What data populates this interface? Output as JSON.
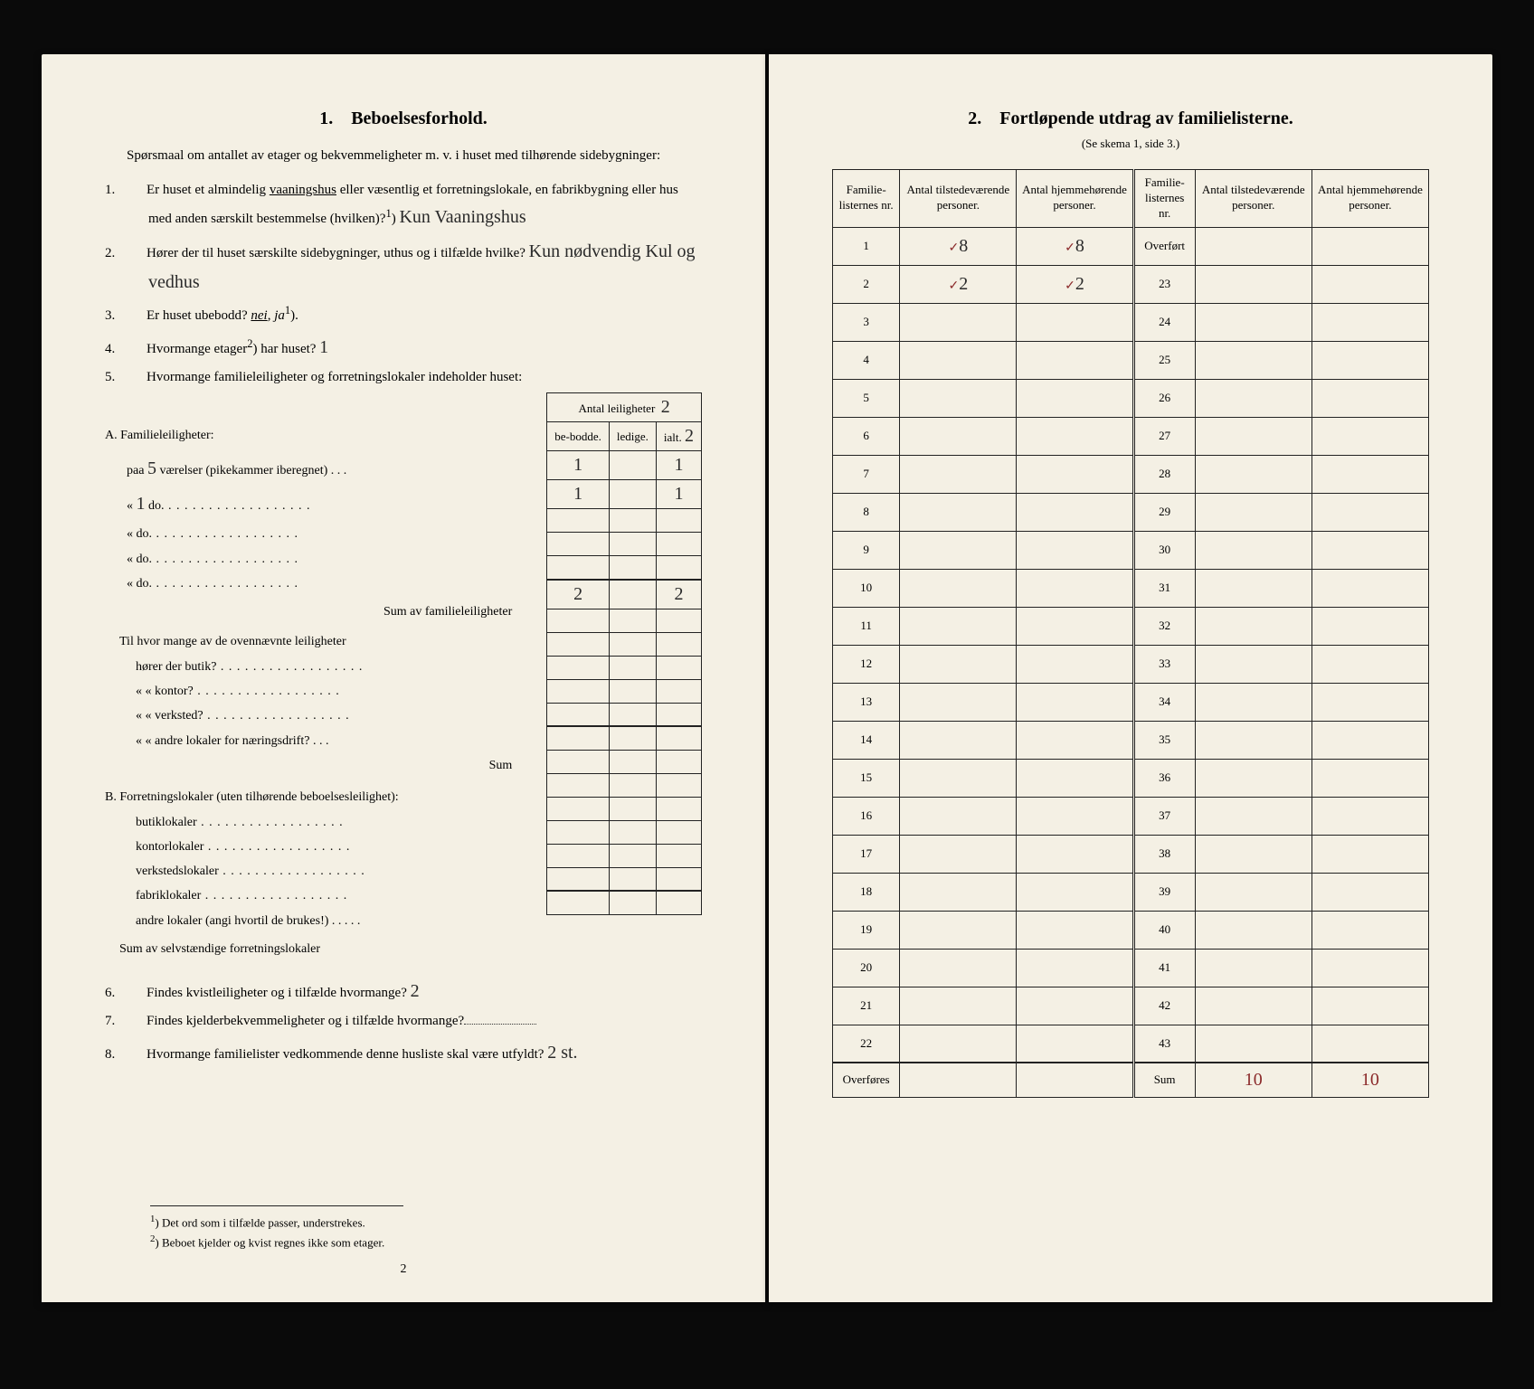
{
  "left": {
    "heading_num": "1.",
    "heading": "Beboelsesforhold.",
    "intro": "Spørsmaal om antallet av etager og bekvemmeligheter m. v. i huset med tilhørende sidebygninger:",
    "q1": {
      "n": "1.",
      "text_a": "Er huset et almindelig ",
      "underlined": "vaaningshus",
      "text_b": " eller væsentlig et forretningslokale, en fabrikbygning eller hus med anden særskilt bestemmelse (hvilken)?",
      "sup": "1",
      "ans": "Kun Vaaningshus"
    },
    "q2": {
      "n": "2.",
      "text": "Hører der til huset særskilte sidebygninger, uthus og i tilfælde hvilke?",
      "ans": "Kun nødvendig Kul og vedhus"
    },
    "q3": {
      "n": "3.",
      "text": "Er huset ubebodd? ",
      "nei": "nei",
      "ja": "ja",
      "sup": "1",
      "post": ")."
    },
    "q4": {
      "n": "4.",
      "text": "Hvormange etager",
      "sup": "2",
      "text2": ") har huset?",
      "ans": "1"
    },
    "q5": {
      "n": "5.",
      "text": "Hvormange familieleiligheter og forretningslokaler indeholder huset:"
    },
    "tbl_head_span": "Antal leiligheter",
    "tbl_head_mark": "2",
    "tbl_cols": {
      "a": "be-bodde.",
      "b": "ledige.",
      "c": "ialt."
    },
    "tbl_c_mark": "2",
    "A_label": "A. Familieleiligheter:",
    "A_rows": [
      {
        "pre": "paa ",
        "val": "5",
        "mid": " værelser (pikekammer iberegnet) . . .",
        "c1": "1",
        "c2": "",
        "c3": "1"
      },
      {
        "pre": "«     ",
        "val": "1",
        "mid": "   do.",
        "c1": "1",
        "c2": "",
        "c3": "1"
      },
      {
        "pre": "«     ",
        "val": "",
        "mid": "   do.",
        "c1": "",
        "c2": "",
        "c3": ""
      },
      {
        "pre": "«     ",
        "val": "",
        "mid": "   do.",
        "c1": "",
        "c2": "",
        "c3": ""
      },
      {
        "pre": "«     ",
        "val": "",
        "mid": "   do.",
        "c1": "",
        "c2": "",
        "c3": ""
      }
    ],
    "A_sum_label": "Sum av familieleiligheter",
    "A_sum": {
      "c1": "2",
      "c2": "",
      "c3": "2"
    },
    "A_q_lines_intro": "Til hvor mange av de ovennævnte leiligheter",
    "A_q_lines": [
      "hører der butik?",
      "«     «   kontor?",
      "«     «   verksted?",
      "«     «   andre lokaler for næringsdrift?"
    ],
    "A_q_sum": "Sum",
    "B_label": "B. Forretningslokaler (uten tilhørende beboelsesleilighet):",
    "B_lines": [
      "butiklokaler",
      "kontorlokaler",
      "verkstedslokaler",
      "fabriklokaler",
      "andre lokaler (angi hvortil de brukes!)"
    ],
    "B_sum": "Sum av selvstændige forretningslokaler",
    "q6": {
      "n": "6.",
      "text": "Findes kvistleiligheter og i tilfælde hvormange?",
      "ans": "2"
    },
    "q7": {
      "n": "7.",
      "text": "Findes kjelderbekvemmeligheter og i tilfælde hvormange?"
    },
    "q8": {
      "n": "8.",
      "text": "Hvormange familielister vedkommende denne husliste skal være utfyldt?",
      "ans": "2 st."
    },
    "fn1": {
      "sup": "1",
      "text": ") Det ord som i tilfælde passer, understrekes."
    },
    "fn2": {
      "sup": "2",
      "text": ") Beboet kjelder og kvist regnes ikke som etager."
    },
    "pagenum": "2"
  },
  "right": {
    "heading_num": "2.",
    "heading": "Fortløpende utdrag av familielisterne.",
    "sub": "(Se skema 1, side 3.)",
    "cols": {
      "nr": "Familie-listernes nr.",
      "present": "Antal tilstedeværende personer.",
      "home": "Antal hjemmehørende personer."
    },
    "left_rows": [
      {
        "nr": "1",
        "p": "8",
        "h": "8",
        "tick": true
      },
      {
        "nr": "2",
        "p": "2",
        "h": "2",
        "tick": true
      },
      {
        "nr": "3"
      },
      {
        "nr": "4"
      },
      {
        "nr": "5"
      },
      {
        "nr": "6"
      },
      {
        "nr": "7"
      },
      {
        "nr": "8"
      },
      {
        "nr": "9"
      },
      {
        "nr": "10"
      },
      {
        "nr": "11"
      },
      {
        "nr": "12"
      },
      {
        "nr": "13"
      },
      {
        "nr": "14"
      },
      {
        "nr": "15"
      },
      {
        "nr": "16"
      },
      {
        "nr": "17"
      },
      {
        "nr": "18"
      },
      {
        "nr": "19"
      },
      {
        "nr": "20"
      },
      {
        "nr": "21"
      },
      {
        "nr": "22"
      }
    ],
    "left_footer": "Overføres",
    "right_first": "Overført",
    "right_rows": [
      "23",
      "24",
      "25",
      "26",
      "27",
      "28",
      "29",
      "30",
      "31",
      "32",
      "33",
      "34",
      "35",
      "36",
      "37",
      "38",
      "39",
      "40",
      "41",
      "42",
      "43"
    ],
    "sum_label": "Sum",
    "sum_p": "10",
    "sum_h": "10"
  }
}
